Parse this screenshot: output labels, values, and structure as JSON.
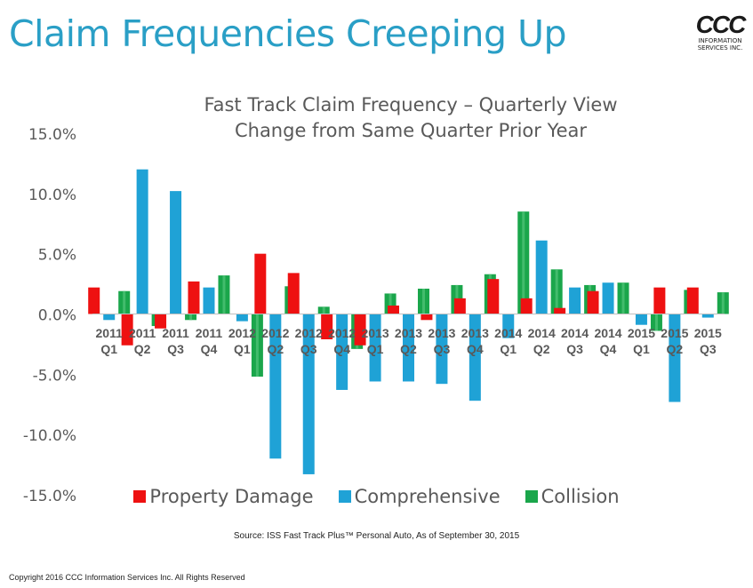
{
  "slide": {
    "title": "Claim Frequencies Creeping Up",
    "logo": {
      "mark": "CCC",
      "line1": "INFORMATION",
      "line2": "SERVICES INC."
    },
    "source": "Source:  ISS Fast Track Plus™ Personal Auto, As of September 30, 2015",
    "copyright": "Copyright 2016 CCC Information Services Inc.  All Rights Reserved"
  },
  "chart_data": {
    "type": "bar",
    "title": "Fast Track Claim Frequency – Quarterly View",
    "subtitle": "Change from Same Quarter Prior Year",
    "xlabel": "",
    "ylabel": "",
    "ylim": [
      -15,
      15
    ],
    "y_ticks": [
      "15.0%",
      "10.0%",
      "5.0%",
      "0.0%",
      "-5.0%",
      "-10.0%",
      "-15.0%"
    ],
    "y_tick_values": [
      15,
      10,
      5,
      0,
      -5,
      -10,
      -15
    ],
    "categories": [
      [
        "2011",
        "Q1"
      ],
      [
        "2011",
        "Q2"
      ],
      [
        "2011",
        "Q3"
      ],
      [
        "2011",
        "Q4"
      ],
      [
        "2012",
        "Q1"
      ],
      [
        "2012",
        "Q2"
      ],
      [
        "2012",
        "Q3"
      ],
      [
        "2012",
        "Q4"
      ],
      [
        "2013",
        "Q1"
      ],
      [
        "2013",
        "Q2"
      ],
      [
        "2013",
        "Q3"
      ],
      [
        "2013",
        "Q4"
      ],
      [
        "2014",
        "Q1"
      ],
      [
        "2014",
        "Q2"
      ],
      [
        "2014",
        "Q3"
      ],
      [
        "2014",
        "Q4"
      ],
      [
        "2015",
        "Q1"
      ],
      [
        "2015",
        "Q2"
      ],
      [
        "2015",
        "Q3"
      ]
    ],
    "series": [
      {
        "name": "Property Damage",
        "color": "#ee1111",
        "values": [
          2.2,
          -2.6,
          -1.2,
          2.7,
          0.0,
          5.0,
          3.4,
          -2.1,
          -2.6,
          0.7,
          -0.5,
          1.3,
          2.9,
          1.3,
          0.5,
          1.9,
          0.0,
          2.2,
          2.2
        ]
      },
      {
        "name": "Comprehensive",
        "color": "#1fa2d6",
        "values": [
          -0.5,
          12.0,
          10.2,
          2.2,
          -0.6,
          -12.0,
          -13.3,
          -6.3,
          -5.6,
          -5.6,
          -5.8,
          -7.2,
          -2.0,
          6.1,
          2.2,
          2.6,
          -0.9,
          -7.3,
          -0.3
        ]
      },
      {
        "name": "Collision",
        "color": "#1aa64b",
        "values": [
          1.9,
          -1.0,
          -0.5,
          3.2,
          -5.2,
          2.3,
          0.6,
          -2.9,
          1.7,
          2.1,
          2.4,
          3.3,
          8.5,
          3.7,
          2.4,
          2.6,
          -1.4,
          2.0,
          1.8
        ]
      }
    ],
    "legend_position": "bottom",
    "grid": false
  }
}
